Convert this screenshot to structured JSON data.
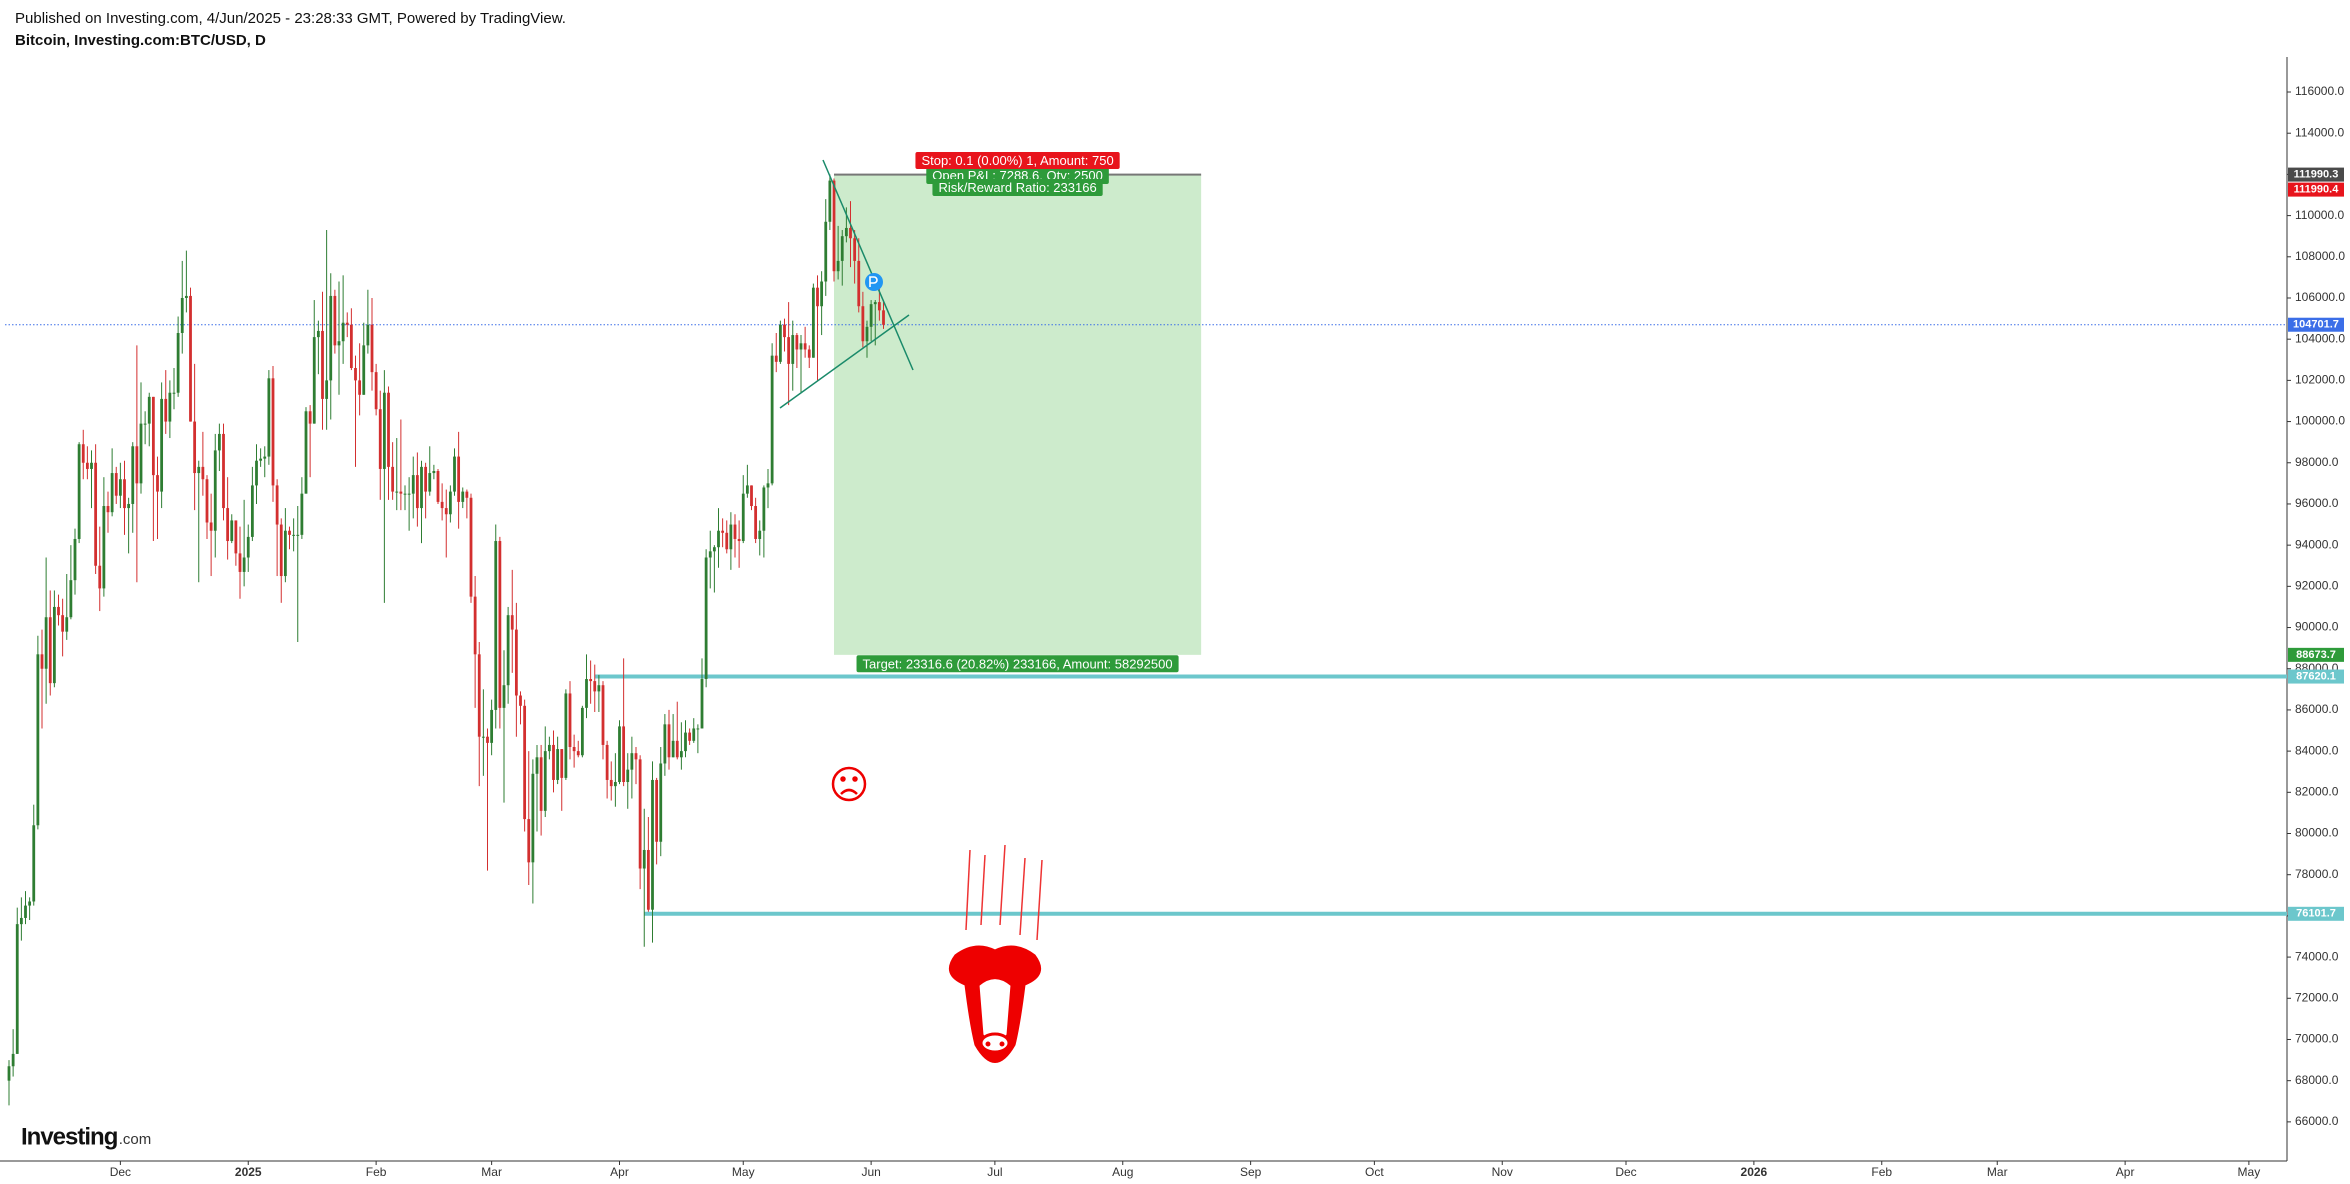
{
  "header": {
    "published": "Published on Investing.com, 4/Jun/2025 - 23:28:33 GMT, Powered by TradingView.",
    "symbol": "Bitcoin, Investing.com:BTC/USD, D"
  },
  "logo": {
    "main": "Investing",
    "suffix": ".com"
  },
  "chart_data": {
    "type": "candlestick",
    "up_color": "#2e7d32",
    "down_color": "#d32f2f",
    "ylim": [
      64100,
      117700
    ],
    "yticks": [
      {
        "value": 66000,
        "label": "66000.0"
      },
      {
        "value": 68000,
        "label": "68000.0"
      },
      {
        "value": 70000,
        "label": "70000.0"
      },
      {
        "value": 72000,
        "label": "72000.0"
      },
      {
        "value": 74000,
        "label": "74000.0"
      },
      {
        "value": 76000,
        "label": "76000.0"
      },
      {
        "value": 78000,
        "label": "78000.0"
      },
      {
        "value": 80000,
        "label": "80000.0"
      },
      {
        "value": 82000,
        "label": "82000.0"
      },
      {
        "value": 84000,
        "label": "84000.0"
      },
      {
        "value": 86000,
        "label": "86000.0"
      },
      {
        "value": 88000,
        "label": "88000.0"
      },
      {
        "value": 90000,
        "label": "90000.0"
      },
      {
        "value": 92000,
        "label": "92000.0"
      },
      {
        "value": 94000,
        "label": "94000.0"
      },
      {
        "value": 96000,
        "label": "96000.0"
      },
      {
        "value": 98000,
        "label": "98000.0"
      },
      {
        "value": 100000,
        "label": "100000.0"
      },
      {
        "value": 102000,
        "label": "102000.0"
      },
      {
        "value": 104000,
        "label": "104000.0"
      },
      {
        "value": 106000,
        "label": "106000.0"
      },
      {
        "value": 108000,
        "label": "108000.0"
      },
      {
        "value": 110000,
        "label": "110000.0"
      },
      {
        "value": 112000,
        "label": "112000.0"
      },
      {
        "value": 114000,
        "label": "114000.0"
      },
      {
        "value": 116000,
        "label": "116000.0"
      }
    ],
    "xtick_labels": [
      "Dec",
      "2025",
      "Feb",
      "Mar",
      "Apr",
      "May",
      "Jun",
      "Jul",
      "Aug",
      "Sep",
      "Oct",
      "Nov",
      "Dec",
      "2026",
      "Feb",
      "Mar",
      "Apr",
      "May"
    ],
    "levels": [
      {
        "value": 104701.7,
        "color": "#3b6ee8",
        "style": "dotted"
      },
      {
        "value": 87620.1,
        "color": "#6cc7cc",
        "style": "solid"
      },
      {
        "value": 76101.7,
        "color": "#6cc7cc",
        "style": "solid"
      }
    ],
    "position": {
      "entry": 111990.3,
      "stop": 111990.4,
      "target": 88673.7,
      "stop_text": "Stop: 0.1 (0.00%) 1, Amount: 750",
      "pnl_text": "Open P&L: 7288.6, Qty: 2500",
      "rr_text": "Risk/Reward Ratio: 233166",
      "target_text": "Target: 23316.6 (20.82%) 233166, Amount: 58292500"
    },
    "candles": [
      [
        68000,
        69000,
        66800,
        68700
      ],
      [
        68700,
        70500,
        68200,
        69300
      ],
      [
        69300,
        76400,
        69300,
        75600
      ],
      [
        75600,
        76900,
        74800,
        75900
      ],
      [
        75900,
        77200,
        75600,
        76500
      ],
      [
        76500,
        76900,
        75800,
        76700
      ],
      [
        76700,
        81400,
        76500,
        80400
      ],
      [
        80400,
        89600,
        80200,
        88700
      ],
      [
        88700,
        89900,
        85100,
        88000
      ],
      [
        88000,
        93400,
        86300,
        90500
      ],
      [
        90500,
        91800,
        86700,
        87300
      ],
      [
        87300,
        91800,
        87100,
        91000
      ],
      [
        91000,
        91600,
        90100,
        90600
      ],
      [
        90600,
        91400,
        88600,
        89800
      ],
      [
        89800,
        92600,
        89400,
        90500
      ],
      [
        90500,
        94000,
        90400,
        92300
      ],
      [
        92300,
        94800,
        91600,
        94300
      ],
      [
        94300,
        99000,
        94100,
        98900
      ],
      [
        98900,
        99600,
        97200,
        98000
      ],
      [
        98000,
        98800,
        97200,
        97700
      ],
      [
        97700,
        98600,
        95800,
        98000
      ],
      [
        98000,
        98900,
        92600,
        93000
      ],
      [
        93000,
        94900,
        90800,
        91900
      ],
      [
        91900,
        97300,
        91500,
        95900
      ],
      [
        95900,
        96600,
        94600,
        95600
      ],
      [
        95600,
        98700,
        95400,
        97500
      ],
      [
        97500,
        97800,
        96000,
        96400
      ],
      [
        96400,
        98000,
        95800,
        97200
      ],
      [
        97200,
        98100,
        94500,
        95800
      ],
      [
        95800,
        96300,
        93600,
        96000
      ],
      [
        96000,
        99000,
        94600,
        98800
      ],
      [
        98800,
        103700,
        92200,
        97000
      ],
      [
        97000,
        101900,
        96500,
        99900
      ],
      [
        99900,
        100500,
        98900,
        99900
      ],
      [
        99900,
        101400,
        98800,
        101200
      ],
      [
        101200,
        101200,
        94200,
        97400
      ],
      [
        97400,
        98300,
        94300,
        96600
      ],
      [
        96600,
        101900,
        95800,
        101100
      ],
      [
        101100,
        102500,
        99400,
        100000
      ],
      [
        100000,
        102000,
        99200,
        101400
      ],
      [
        101400,
        102600,
        100600,
        101400
      ],
      [
        101400,
        105100,
        101200,
        104300
      ],
      [
        104300,
        107800,
        103300,
        106000
      ],
      [
        106000,
        108300,
        105300,
        106100
      ],
      [
        106100,
        106500,
        100000,
        100000
      ],
      [
        100000,
        102800,
        95700,
        97500
      ],
      [
        97500,
        98100,
        92200,
        97800
      ],
      [
        97800,
        99500,
        96400,
        97200
      ],
      [
        97200,
        97400,
        94300,
        95100
      ],
      [
        95100,
        96500,
        92500,
        94700
      ],
      [
        94700,
        99400,
        93400,
        98600
      ],
      [
        98600,
        99900,
        97600,
        99400
      ],
      [
        99400,
        99900,
        95200,
        95800
      ],
      [
        95800,
        97300,
        93300,
        94200
      ],
      [
        94200,
        95500,
        94100,
        95200
      ],
      [
        95200,
        95200,
        93000,
        93600
      ],
      [
        93600,
        94900,
        91400,
        92700
      ],
      [
        92700,
        96200,
        92000,
        93400
      ],
      [
        93400,
        95000,
        92700,
        94400
      ],
      [
        94400,
        97800,
        94200,
        96900
      ],
      [
        96900,
        98900,
        96000,
        98100
      ],
      [
        98100,
        98700,
        97800,
        98200
      ],
      [
        98200,
        98800,
        97300,
        98300
      ],
      [
        98300,
        102500,
        97900,
        102100
      ],
      [
        102100,
        102700,
        96100,
        96900
      ],
      [
        96900,
        97200,
        92500,
        95000
      ],
      [
        95000,
        95300,
        91200,
        92500
      ],
      [
        92500,
        95800,
        92200,
        94700
      ],
      [
        94700,
        94900,
        93800,
        94500
      ],
      [
        94500,
        95300,
        93700,
        94500
      ],
      [
        94500,
        95900,
        89300,
        94500
      ],
      [
        94500,
        97300,
        94300,
        96500
      ],
      [
        96500,
        100700,
        96500,
        100500
      ],
      [
        100500,
        100800,
        97300,
        99900
      ],
      [
        99900,
        105900,
        99900,
        104100
      ],
      [
        104100,
        104900,
        102300,
        104400
      ],
      [
        104400,
        106300,
        99600,
        101100
      ],
      [
        101100,
        109300,
        99600,
        102000
      ],
      [
        102000,
        107200,
        100100,
        106100
      ],
      [
        106100,
        106400,
        103300,
        103700
      ],
      [
        103700,
        106800,
        101300,
        103900
      ],
      [
        103900,
        107100,
        102800,
        104800
      ],
      [
        104800,
        105300,
        104100,
        104700
      ],
      [
        104700,
        105500,
        102500,
        102600
      ],
      [
        102600,
        103200,
        97800,
        102000
      ],
      [
        102000,
        103800,
        100300,
        101300
      ],
      [
        101300,
        104800,
        101300,
        103700
      ],
      [
        103700,
        106400,
        103300,
        104700
      ],
      [
        104700,
        106000,
        101500,
        102400
      ],
      [
        102400,
        102800,
        100300,
        100600
      ],
      [
        100600,
        101500,
        96200,
        97700
      ],
      [
        97700,
        102500,
        91200,
        101400
      ],
      [
        101400,
        101700,
        96200,
        97800
      ],
      [
        97800,
        99000,
        96200,
        96600
      ],
      [
        96600,
        99200,
        95700,
        96600
      ],
      [
        96600,
        100100,
        95700,
        96500
      ],
      [
        96500,
        96900,
        95700,
        96500
      ],
      [
        96500,
        97300,
        94700,
        96500
      ],
      [
        96500,
        98300,
        95300,
        97400
      ],
      [
        97400,
        98500,
        94900,
        95800
      ],
      [
        95800,
        98100,
        94100,
        97800
      ],
      [
        97800,
        98000,
        95300,
        96600
      ],
      [
        96600,
        98800,
        96400,
        97500
      ],
      [
        97500,
        97900,
        97200,
        97600
      ],
      [
        97600,
        97700,
        96000,
        96100
      ],
      [
        96100,
        97000,
        95200,
        95800
      ],
      [
        95800,
        96700,
        93400,
        95500
      ],
      [
        95500,
        96900,
        95100,
        96600
      ],
      [
        96600,
        98700,
        96400,
        98300
      ],
      [
        98300,
        99500,
        94800,
        96100
      ],
      [
        96100,
        96800,
        95800,
        96600
      ],
      [
        96600,
        96700,
        95300,
        96300
      ],
      [
        96300,
        96500,
        91200,
        91500
      ],
      [
        91500,
        92500,
        86100,
        88700
      ],
      [
        88700,
        89300,
        82300,
        84700
      ],
      [
        84700,
        87000,
        82800,
        84700
      ],
      [
        84700,
        85100,
        78200,
        84400
      ],
      [
        84400,
        86500,
        83800,
        86000
      ],
      [
        86000,
        95000,
        85100,
        94200
      ],
      [
        94200,
        94400,
        85100,
        86100
      ],
      [
        86100,
        88900,
        81500,
        87200
      ],
      [
        87200,
        91000,
        86300,
        90600
      ],
      [
        90600,
        92800,
        87800,
        89900
      ],
      [
        89900,
        91200,
        84700,
        86700
      ],
      [
        86700,
        86900,
        85300,
        86200
      ],
      [
        86200,
        86500,
        80100,
        80700
      ],
      [
        80700,
        84000,
        77500,
        78600
      ],
      [
        78600,
        83600,
        76600,
        82900
      ],
      [
        82900,
        84300,
        80100,
        83700
      ],
      [
        83700,
        84300,
        79900,
        81100
      ],
      [
        81100,
        85200,
        80800,
        84000
      ],
      [
        84000,
        84700,
        83600,
        84300
      ],
      [
        84300,
        85000,
        82000,
        82600
      ],
      [
        82600,
        84700,
        82400,
        84100
      ],
      [
        84100,
        84100,
        81100,
        82700
      ],
      [
        82700,
        87000,
        82600,
        86800
      ],
      [
        86800,
        87400,
        83600,
        84200
      ],
      [
        84200,
        84800,
        83200,
        84000
      ],
      [
        84000,
        84500,
        83700,
        83800
      ],
      [
        83800,
        86200,
        83700,
        86100
      ],
      [
        86100,
        88700,
        85600,
        87500
      ],
      [
        87500,
        88400,
        86300,
        87400
      ],
      [
        87400,
        88200,
        85900,
        86900
      ],
      [
        86900,
        87700,
        85900,
        87200
      ],
      [
        87200,
        87400,
        83600,
        84300
      ],
      [
        84300,
        84500,
        81700,
        82600
      ],
      [
        82600,
        83500,
        81600,
        82300
      ],
      [
        82300,
        83900,
        81300,
        82500
      ],
      [
        82500,
        85500,
        82400,
        85200
      ],
      [
        85200,
        88500,
        82300,
        82500
      ],
      [
        82500,
        83900,
        81200,
        83100
      ],
      [
        83100,
        84700,
        81700,
        83900
      ],
      [
        83900,
        84200,
        82400,
        83600
      ],
      [
        83600,
        83800,
        77300,
        78300
      ],
      [
        78300,
        81200,
        74500,
        79200
      ],
      [
        79200,
        80800,
        76200,
        76300
      ],
      [
        76300,
        83500,
        74700,
        82600
      ],
      [
        82600,
        82700,
        78500,
        79600
      ],
      [
        79600,
        84200,
        78900,
        83400
      ],
      [
        83400,
        85800,
        82800,
        85300
      ],
      [
        85300,
        86000,
        83100,
        83700
      ],
      [
        83700,
        85800,
        83700,
        84500
      ],
      [
        84500,
        86400,
        83600,
        83700
      ],
      [
        83700,
        85400,
        83100,
        84000
      ],
      [
        84000,
        85500,
        83700,
        84900
      ],
      [
        84900,
        85100,
        84300,
        84500
      ],
      [
        84500,
        85600,
        84400,
        85100
      ],
      [
        85100,
        85300,
        83900,
        85100
      ],
      [
        85100,
        88500,
        85100,
        87500
      ],
      [
        87500,
        93800,
        87100,
        93400
      ],
      [
        93400,
        94700,
        91900,
        93700
      ],
      [
        93700,
        94000,
        91700,
        93900
      ],
      [
        93900,
        95800,
        92900,
        94700
      ],
      [
        94700,
        95300,
        93900,
        94600
      ],
      [
        94600,
        95200,
        93600,
        93800
      ],
      [
        93800,
        95600,
        92800,
        95000
      ],
      [
        95000,
        95500,
        93400,
        94300
      ],
      [
        94300,
        95200,
        92900,
        94200
      ],
      [
        94200,
        97400,
        94100,
        96500
      ],
      [
        96500,
        97900,
        96300,
        96900
      ],
      [
        96900,
        96900,
        95700,
        95900
      ],
      [
        95900,
        96300,
        94100,
        94300
      ],
      [
        94300,
        95200,
        93500,
        94700
      ],
      [
        94700,
        96900,
        93400,
        96800
      ],
      [
        96800,
        97700,
        95800,
        97000
      ],
      [
        97000,
        103800,
        96900,
        103200
      ],
      [
        103200,
        104300,
        102400,
        102900
      ],
      [
        102900,
        104900,
        102800,
        104700
      ],
      [
        104700,
        105000,
        103400,
        104100
      ],
      [
        104100,
        105800,
        100800,
        102800
      ],
      [
        102800,
        104900,
        101500,
        104200
      ],
      [
        104200,
        104300,
        102600,
        103500
      ],
      [
        103500,
        104200,
        101400,
        103800
      ],
      [
        103800,
        104600,
        103100,
        103500
      ],
      [
        103500,
        103700,
        102600,
        103100
      ],
      [
        103100,
        106700,
        103100,
        106500
      ],
      [
        106500,
        107100,
        102000,
        105600
      ],
      [
        105600,
        107300,
        104200,
        106800
      ],
      [
        106800,
        110800,
        106100,
        109700
      ],
      [
        109700,
        112000,
        109300,
        111700
      ],
      [
        111700,
        111800,
        106800,
        107300
      ],
      [
        107300,
        109500,
        106900,
        107800
      ],
      [
        107800,
        109300,
        106600,
        109000
      ],
      [
        109000,
        110400,
        108700,
        109400
      ],
      [
        109400,
        110700,
        107500,
        108900
      ],
      [
        108900,
        109300,
        106700,
        107800
      ],
      [
        107800,
        108900,
        105300,
        105600
      ],
      [
        105600,
        106300,
        103600,
        103900
      ],
      [
        103900,
        104900,
        103100,
        104600
      ],
      [
        104600,
        105900,
        103900,
        105700
      ],
      [
        105700,
        105900,
        103700,
        105800
      ],
      [
        105800,
        106800,
        104900,
        105400
      ],
      [
        105400,
        105900,
        104500,
        104700
      ]
    ]
  }
}
